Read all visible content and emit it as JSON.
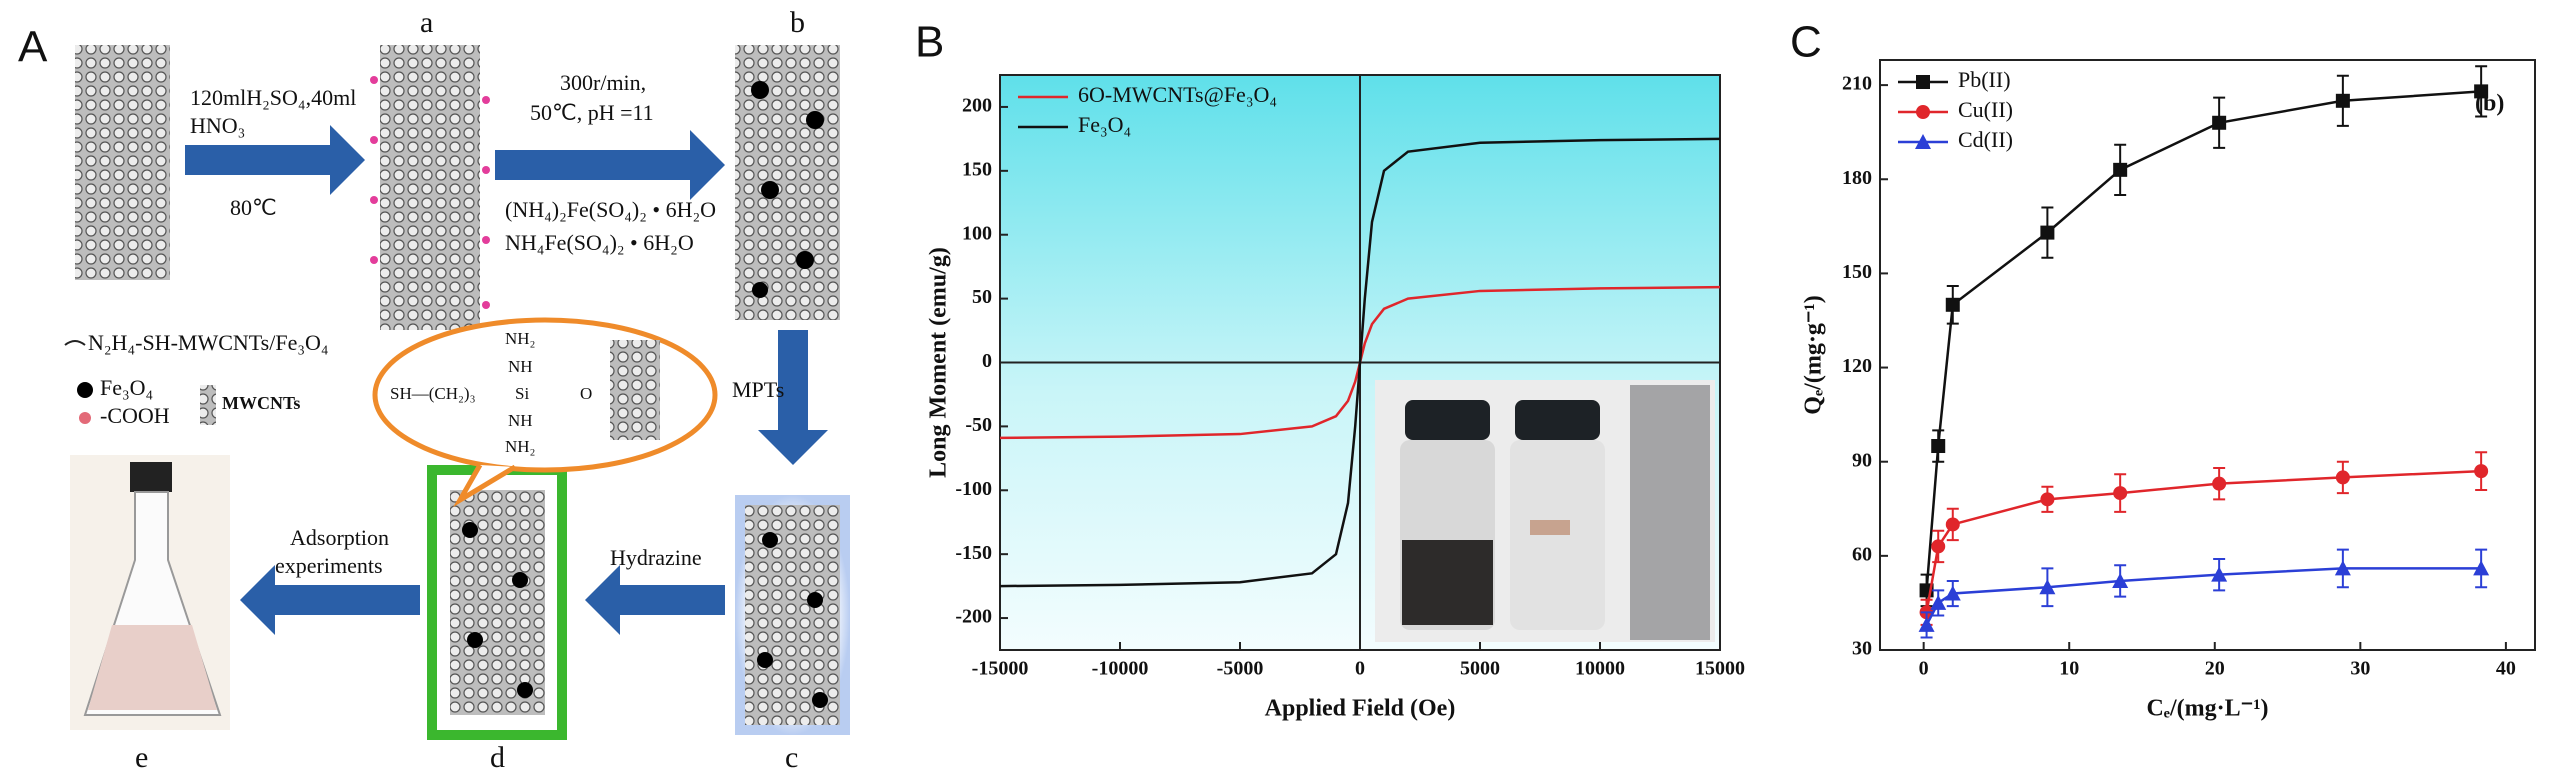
{
  "diagram": {
    "panel_label": "A",
    "tube_labels": [
      "a",
      "b",
      "c",
      "d",
      "e"
    ],
    "step1": [
      "120mlH₂SO₄,40ml",
      "HNO₃",
      "80℃"
    ],
    "step2": [
      "300r/min,",
      "50℃, pH =11",
      "(NH₄)₂Fe(SO₄)₂ • 6H₂O",
      "NH₄Fe(SO₄)₂ • 6H₂O"
    ],
    "step3": "MPTs",
    "step4": "Hydrazine",
    "step5": [
      "Adsorption",
      "experiments"
    ],
    "legend": {
      "product": "N₂H₄-SH-MWCNTs/Fe₃O₄",
      "particle": "Fe₃O₄",
      "group": "-COOH",
      "tube": "MWCNTs"
    },
    "bubble": [
      "NH₂",
      "NH",
      "SH—(CH₂)₃",
      "Si",
      "O",
      "NH",
      "NH₂"
    ]
  },
  "chart_data": [
    {
      "type": "line",
      "label": "B",
      "xlabel": "Applied Field (Oe)",
      "ylabel": "Long Moment (emu/g)",
      "x": [
        -15000,
        -10000,
        -5000,
        -2000,
        -1000,
        -500,
        -200,
        0,
        200,
        500,
        1000,
        2000,
        5000,
        10000,
        15000
      ],
      "series": [
        {
          "name": "6O-MWCNTs@Fe₃O₄",
          "color": "#e0262b",
          "values": [
            -59,
            -58,
            -56,
            -50,
            -42,
            -30,
            -15,
            0,
            15,
            30,
            42,
            50,
            56,
            58,
            59
          ]
        },
        {
          "name": "Fe₃O₄",
          "color": "#111111",
          "values": [
            -175,
            -174,
            -172,
            -165,
            -150,
            -110,
            -50,
            0,
            50,
            110,
            150,
            165,
            172,
            174,
            175
          ]
        }
      ],
      "xlim": [
        -15000,
        15000
      ],
      "ylim": [
        -225,
        225
      ],
      "xticks": [
        -15000,
        -10000,
        -5000,
        0,
        5000,
        10000,
        15000
      ],
      "yticks": [
        -200,
        -150,
        -100,
        -50,
        0,
        50,
        100,
        150,
        200
      ],
      "zero_lines": true,
      "legend": "upper left"
    },
    {
      "type": "line",
      "label": "C",
      "xlabel": "Cₑ/(mg·L⁻¹)",
      "ylabel": "Qₑ/(mg·g⁻¹)",
      "annotation": "(b)",
      "x": [
        0.2,
        1,
        2,
        8.5,
        13.5,
        20.3,
        28.8,
        38.3
      ],
      "series": [
        {
          "name": "Pb(II)",
          "color": "#111111",
          "marker": "square",
          "values": [
            49,
            95,
            140,
            163,
            183,
            198,
            205,
            208
          ],
          "errors": [
            5,
            5,
            6,
            8,
            8,
            8,
            8,
            8
          ]
        },
        {
          "name": "Cu(II)",
          "color": "#e0262b",
          "marker": "circle",
          "values": [
            42,
            63,
            70,
            78,
            80,
            83,
            85,
            87
          ],
          "errors": [
            4,
            5,
            5,
            4,
            6,
            5,
            5,
            6
          ]
        },
        {
          "name": "Cd(II)",
          "color": "#2b3fd6",
          "marker": "triangle",
          "values": [
            38,
            45,
            48,
            50,
            52,
            54,
            56,
            56
          ],
          "errors": [
            4,
            4,
            4,
            6,
            5,
            5,
            6,
            6
          ]
        }
      ],
      "xlim": [
        -3,
        42
      ],
      "ylim": [
        30,
        218
      ],
      "xticks": [
        0,
        10,
        20,
        30,
        40
      ],
      "yticks": [
        30,
        60,
        90,
        120,
        150,
        180,
        210
      ],
      "zero_lines": false,
      "legend": "upper left"
    }
  ]
}
